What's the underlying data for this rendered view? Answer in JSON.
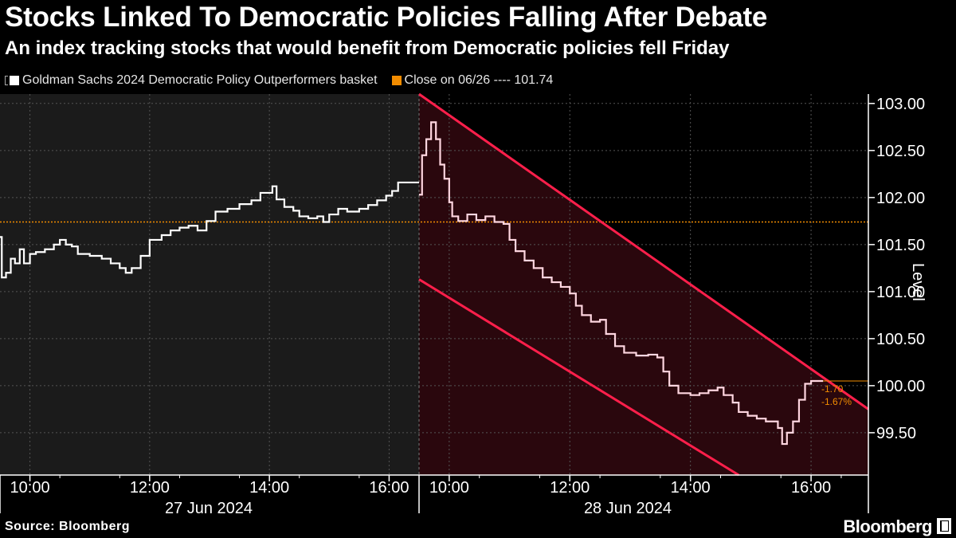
{
  "header": {
    "title": "Stocks Linked To Democratic Policies Falling After Debate",
    "subtitle": "An index tracking stocks that would benefit from Democratic policies fell Friday"
  },
  "legend": {
    "series_label": "Goldman Sachs 2024 Democratic Policy Outperformers basket",
    "reference_label": "Close on 06/26 ---- 101.74"
  },
  "footer": {
    "source": "Source: Bloomberg",
    "brand": "Bloomberg"
  },
  "colors": {
    "background": "#000000",
    "day1_shade": "#1b1b1b",
    "series": "#ffffff",
    "series_day2": "#ffd6e0",
    "reference": "#f28c00",
    "channel": "#ff1f4b",
    "channel_fill": "#2a070d",
    "annotation": "#f28c00"
  },
  "chart_data": {
    "type": "line",
    "title": "Stocks Linked To Democratic Policies Falling After Debate",
    "ylabel": "Level",
    "ylim": [
      99.05,
      103.1
    ],
    "yticks": [
      99.5,
      100.0,
      100.5,
      101.0,
      101.5,
      102.0,
      102.5,
      103.0
    ],
    "ytick_labels": [
      "99.50",
      "100.00",
      "100.50",
      "101.00",
      "101.50",
      "102.00",
      "102.50",
      "103.00"
    ],
    "reference_line": {
      "label": "Close on 06/26",
      "value": 101.74
    },
    "days": [
      {
        "label": "27 Jun 2024",
        "start_hour": 9.5,
        "end_hour": 16.5,
        "ticks": [
          "10:00",
          "12:00",
          "14:00",
          "16:00"
        ],
        "tick_hours": [
          10,
          12,
          14,
          16
        ]
      },
      {
        "label": "28 Jun 2024",
        "start_hour": 9.5,
        "end_hour": 16.95,
        "ticks": [
          "10:00",
          "12:00",
          "14:00",
          "16:00"
        ],
        "tick_hours": [
          10,
          12,
          14,
          16
        ]
      }
    ],
    "series": [
      {
        "name": "Goldman Sachs 2024 Democratic Policy Outperformers basket — 27 Jun",
        "day": 0,
        "points": [
          [
            9.5,
            101.58
          ],
          [
            9.53,
            101.15
          ],
          [
            9.6,
            101.2
          ],
          [
            9.68,
            101.35
          ],
          [
            9.75,
            101.3
          ],
          [
            9.83,
            101.45
          ],
          [
            9.9,
            101.3
          ],
          [
            10.0,
            101.4
          ],
          [
            10.1,
            101.42
          ],
          [
            10.25,
            101.45
          ],
          [
            10.4,
            101.5
          ],
          [
            10.5,
            101.55
          ],
          [
            10.6,
            101.5
          ],
          [
            10.7,
            101.48
          ],
          [
            10.8,
            101.4
          ],
          [
            11.0,
            101.38
          ],
          [
            11.2,
            101.35
          ],
          [
            11.35,
            101.3
          ],
          [
            11.5,
            101.25
          ],
          [
            11.6,
            101.2
          ],
          [
            11.7,
            101.25
          ],
          [
            11.85,
            101.38
          ],
          [
            12.0,
            101.55
          ],
          [
            12.2,
            101.6
          ],
          [
            12.35,
            101.65
          ],
          [
            12.5,
            101.68
          ],
          [
            12.65,
            101.7
          ],
          [
            12.8,
            101.65
          ],
          [
            12.95,
            101.75
          ],
          [
            13.1,
            101.85
          ],
          [
            13.3,
            101.88
          ],
          [
            13.5,
            101.93
          ],
          [
            13.7,
            101.97
          ],
          [
            13.85,
            102.05
          ],
          [
            14.0,
            102.05
          ],
          [
            14.05,
            102.12
          ],
          [
            14.12,
            101.98
          ],
          [
            14.25,
            101.9
          ],
          [
            14.4,
            101.86
          ],
          [
            14.5,
            101.8
          ],
          [
            14.65,
            101.78
          ],
          [
            14.8,
            101.8
          ],
          [
            14.9,
            101.74
          ],
          [
            15.0,
            101.82
          ],
          [
            15.15,
            101.88
          ],
          [
            15.3,
            101.85
          ],
          [
            15.5,
            101.88
          ],
          [
            15.65,
            101.92
          ],
          [
            15.8,
            101.97
          ],
          [
            15.95,
            102.02
          ],
          [
            16.05,
            102.07
          ],
          [
            16.15,
            102.16
          ],
          [
            16.3,
            102.16
          ],
          [
            16.5,
            102.16
          ]
        ]
      },
      {
        "name": "Goldman Sachs 2024 Democratic Policy Outperformers basket — 28 Jun",
        "day": 1,
        "points": [
          [
            9.5,
            102.03
          ],
          [
            9.55,
            102.45
          ],
          [
            9.62,
            102.62
          ],
          [
            9.7,
            102.8
          ],
          [
            9.78,
            102.62
          ],
          [
            9.85,
            102.35
          ],
          [
            9.92,
            102.2
          ],
          [
            10.0,
            101.95
          ],
          [
            10.05,
            101.8
          ],
          [
            10.15,
            101.75
          ],
          [
            10.3,
            101.82
          ],
          [
            10.45,
            101.76
          ],
          [
            10.6,
            101.8
          ],
          [
            10.75,
            101.74
          ],
          [
            10.9,
            101.72
          ],
          [
            11.0,
            101.55
          ],
          [
            11.1,
            101.43
          ],
          [
            11.25,
            101.33
          ],
          [
            11.4,
            101.25
          ],
          [
            11.55,
            101.15
          ],
          [
            11.7,
            101.1
          ],
          [
            11.85,
            101.05
          ],
          [
            12.0,
            100.98
          ],
          [
            12.1,
            100.85
          ],
          [
            12.2,
            100.75
          ],
          [
            12.35,
            100.68
          ],
          [
            12.5,
            100.7
          ],
          [
            12.6,
            100.55
          ],
          [
            12.75,
            100.42
          ],
          [
            12.9,
            100.35
          ],
          [
            13.1,
            100.32
          ],
          [
            13.3,
            100.33
          ],
          [
            13.45,
            100.3
          ],
          [
            13.55,
            100.15
          ],
          [
            13.65,
            100.0
          ],
          [
            13.8,
            99.92
          ],
          [
            14.0,
            99.9
          ],
          [
            14.15,
            99.92
          ],
          [
            14.3,
            99.95
          ],
          [
            14.45,
            99.98
          ],
          [
            14.55,
            99.9
          ],
          [
            14.7,
            99.82
          ],
          [
            14.8,
            99.72
          ],
          [
            14.95,
            99.68
          ],
          [
            15.1,
            99.65
          ],
          [
            15.25,
            99.62
          ],
          [
            15.45,
            99.55
          ],
          [
            15.52,
            99.38
          ],
          [
            15.6,
            99.5
          ],
          [
            15.7,
            99.62
          ],
          [
            15.8,
            99.85
          ],
          [
            15.9,
            100.02
          ],
          [
            16.0,
            100.05
          ],
          [
            16.2,
            100.05
          ]
        ]
      }
    ],
    "last_value": 100.05,
    "annotations": [
      "-1.70",
      "-1.67%"
    ],
    "trend_channel": {
      "upper": {
        "start": [
          9.5,
          103.1
        ],
        "end": [
          16.95,
          99.75
        ]
      },
      "lower": {
        "start": [
          9.5,
          101.13
        ],
        "end": [
          14.8,
          99.05
        ]
      }
    }
  },
  "axis_title": "Level"
}
